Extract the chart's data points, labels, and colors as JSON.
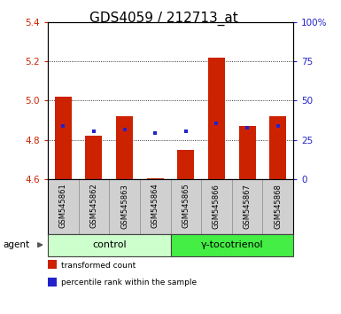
{
  "title": "GDS4059 / 212713_at",
  "samples": [
    "GSM545861",
    "GSM545862",
    "GSM545863",
    "GSM545864",
    "GSM545865",
    "GSM545866",
    "GSM545867",
    "GSM545868"
  ],
  "bar_bottom": 4.6,
  "bar_tops": [
    5.02,
    4.82,
    4.92,
    4.603,
    4.75,
    5.22,
    4.87,
    4.92
  ],
  "percentile_values": [
    4.872,
    4.845,
    4.85,
    4.836,
    4.845,
    4.882,
    4.862,
    4.872
  ],
  "ylim": [
    4.6,
    5.4
  ],
  "y2lim": [
    0,
    100
  ],
  "yticks": [
    4.6,
    4.8,
    5.0,
    5.2,
    5.4
  ],
  "y2ticks": [
    0,
    25,
    50,
    75,
    100
  ],
  "y2ticklabels": [
    "0",
    "25",
    "50",
    "75",
    "100%"
  ],
  "bar_color": "#cc2200",
  "dot_color": "#2222cc",
  "bar_width": 0.55,
  "groups": [
    {
      "label": "control",
      "indices": [
        0,
        1,
        2,
        3
      ],
      "color": "#ccffcc"
    },
    {
      "label": "γ-tocotrienol",
      "indices": [
        4,
        5,
        6,
        7
      ],
      "color": "#44ee44"
    }
  ],
  "agent_label": "agent",
  "legend_items": [
    {
      "label": "transformed count",
      "color": "#cc2200"
    },
    {
      "label": "percentile rank within the sample",
      "color": "#2222cc"
    }
  ],
  "bg_color": "#ffffff",
  "plot_bg": "#ffffff",
  "title_fontsize": 11,
  "tick_fontsize": 7.5,
  "sample_fontsize": 6,
  "group_fontsize": 8
}
